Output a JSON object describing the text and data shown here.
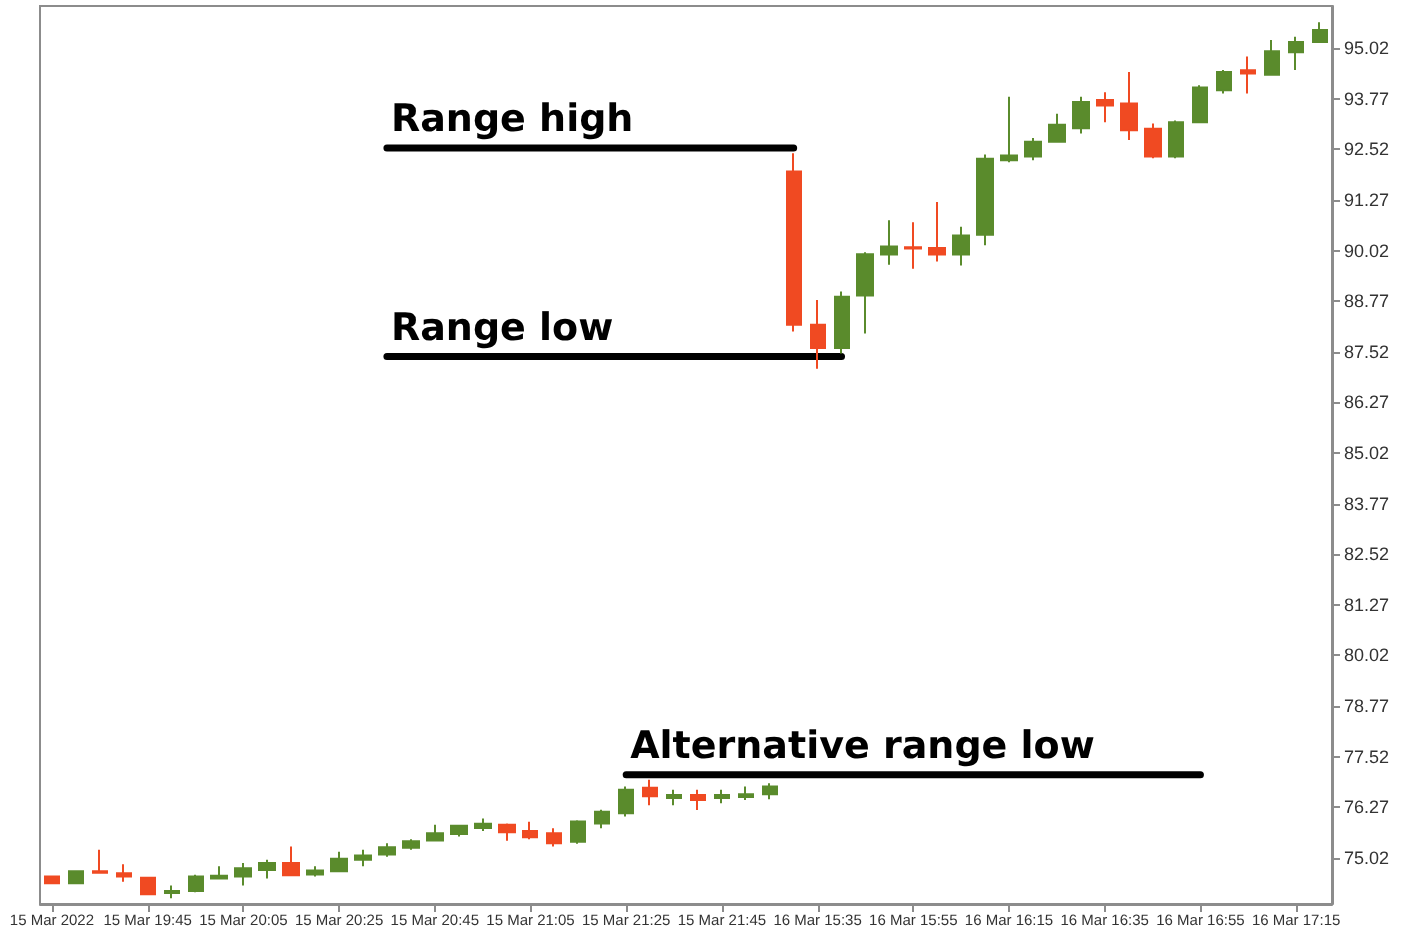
{
  "chart_data": {
    "type": "candlestick",
    "categories": [
      "15 Mar 2022",
      null,
      null,
      null,
      "15 Mar 19:45",
      null,
      null,
      null,
      "15 Mar 20:05",
      null,
      null,
      null,
      "15 Mar 20:25",
      null,
      null,
      null,
      "15 Mar 20:45",
      null,
      null,
      null,
      "15 Mar 21:05",
      null,
      null,
      null,
      "15 Mar 21:25",
      null,
      null,
      null,
      "15 Mar 21:45",
      null,
      null,
      null,
      "16 Mar 15:35",
      null,
      null,
      null,
      "16 Mar 15:55",
      null,
      null,
      null,
      "16 Mar 16:15",
      null,
      null,
      null,
      "16 Mar 16:35",
      null,
      null,
      null,
      "16 Mar 16:55",
      null,
      null,
      null,
      "16 Mar 17:15",
      null
    ],
    "ohlc": [
      [
        74.56,
        74.58,
        74.37,
        74.39
      ],
      [
        74.39,
        74.71,
        74.38,
        74.69
      ],
      [
        74.69,
        75.22,
        74.63,
        74.65
      ],
      [
        74.64,
        74.86,
        74.43,
        74.56
      ],
      [
        74.53,
        74.55,
        74.1,
        74.12
      ],
      [
        74.15,
        74.34,
        74.02,
        74.2
      ],
      [
        74.2,
        74.6,
        74.17,
        74.56
      ],
      [
        74.51,
        74.81,
        74.49,
        74.58
      ],
      [
        74.56,
        74.89,
        74.34,
        74.76
      ],
      [
        74.72,
        74.97,
        74.51,
        74.89
      ],
      [
        74.89,
        75.3,
        74.57,
        74.59
      ],
      [
        74.61,
        74.81,
        74.56,
        74.71
      ],
      [
        74.69,
        75.17,
        74.67,
        75.0
      ],
      [
        74.97,
        75.22,
        74.81,
        75.08
      ],
      [
        75.1,
        75.38,
        75.05,
        75.28
      ],
      [
        75.27,
        75.48,
        75.22,
        75.43
      ],
      [
        75.45,
        75.84,
        75.43,
        75.63
      ],
      [
        75.61,
        75.83,
        75.55,
        75.81
      ],
      [
        75.76,
        75.99,
        75.68,
        75.86
      ],
      [
        75.84,
        75.87,
        75.44,
        75.65
      ],
      [
        75.68,
        75.91,
        75.48,
        75.53
      ],
      [
        75.63,
        75.75,
        75.3,
        75.38
      ],
      [
        75.42,
        75.95,
        75.37,
        75.92
      ],
      [
        75.87,
        76.21,
        75.75,
        76.16
      ],
      [
        76.12,
        76.78,
        76.04,
        76.7
      ],
      [
        76.75,
        76.95,
        76.32,
        76.54
      ],
      [
        76.5,
        76.7,
        76.32,
        76.57
      ],
      [
        76.57,
        76.7,
        76.2,
        76.45
      ],
      [
        76.5,
        76.7,
        76.37,
        76.57
      ],
      [
        76.52,
        76.78,
        76.45,
        76.59
      ],
      [
        76.59,
        76.86,
        76.47,
        76.78
      ],
      [
        91.97,
        92.42,
        88.02,
        88.19
      ],
      [
        88.19,
        88.8,
        87.1,
        87.61
      ],
      [
        87.61,
        89.01,
        87.48,
        88.88
      ],
      [
        88.91,
        89.98,
        87.97,
        89.93
      ],
      [
        89.92,
        90.77,
        89.67,
        90.12
      ],
      [
        90.1,
        90.72,
        89.57,
        90.07
      ],
      [
        90.08,
        91.22,
        89.75,
        89.92
      ],
      [
        89.92,
        90.61,
        89.65,
        90.39
      ],
      [
        90.41,
        92.39,
        90.15,
        92.29
      ],
      [
        92.25,
        93.82,
        92.2,
        92.37
      ],
      [
        92.34,
        92.8,
        92.25,
        92.71
      ],
      [
        92.71,
        93.4,
        92.68,
        93.13
      ],
      [
        93.04,
        93.82,
        92.91,
        93.69
      ],
      [
        93.74,
        93.93,
        93.19,
        93.6
      ],
      [
        93.65,
        94.43,
        92.75,
        92.99
      ],
      [
        93.03,
        93.16,
        92.3,
        92.34
      ],
      [
        92.34,
        93.23,
        92.3,
        93.19
      ],
      [
        93.19,
        94.1,
        93.17,
        94.05
      ],
      [
        93.98,
        94.48,
        93.9,
        94.43
      ],
      [
        94.47,
        94.81,
        93.9,
        94.39
      ],
      [
        94.36,
        95.22,
        94.34,
        94.94
      ],
      [
        94.92,
        95.3,
        94.48,
        95.17
      ],
      [
        95.17,
        95.66,
        95.15,
        95.47
      ]
    ],
    "colors": [
      "#f04a22",
      "#5a8b2c",
      "#f04a22",
      "#f04a22",
      "#f04a22",
      "#5a8b2c",
      "#5a8b2c",
      "#5a8b2c",
      "#5a8b2c",
      "#5a8b2c",
      "#f04a22",
      "#5a8b2c",
      "#5a8b2c",
      "#5a8b2c",
      "#5a8b2c",
      "#5a8b2c",
      "#5a8b2c",
      "#5a8b2c",
      "#5a8b2c",
      "#f04a22",
      "#f04a22",
      "#f04a22",
      "#5a8b2c",
      "#5a8b2c",
      "#5a8b2c",
      "#f04a22",
      "#5a8b2c",
      "#f04a22",
      "#5a8b2c",
      "#5a8b2c",
      "#5a8b2c",
      "#f04a22",
      "#f04a22",
      "#5a8b2c",
      "#5a8b2c",
      "#5a8b2c",
      "#f04a22",
      "#f04a22",
      "#5a8b2c",
      "#5a8b2c",
      "#5a8b2c",
      "#5a8b2c",
      "#5a8b2c",
      "#5a8b2c",
      "#f04a22",
      "#f04a22",
      "#f04a22",
      "#5a8b2c",
      "#5a8b2c",
      "#5a8b2c",
      "#f04a22",
      "#5a8b2c",
      "#5a8b2c",
      "#5a8b2c"
    ],
    "series": [
      {
        "type": "line",
        "name": "Range high",
        "color": "#000000",
        "values": [
          null,
          null,
          null,
          null,
          null,
          null,
          null,
          null,
          null,
          null,
          null,
          null,
          null,
          null,
          92.55,
          92.55,
          92.55,
          92.55,
          92.55,
          92.55,
          92.55,
          92.55,
          92.55,
          92.55,
          92.55,
          92.55,
          92.55,
          92.55,
          92.55,
          92.55,
          92.55,
          92.55,
          null,
          null,
          null,
          null,
          null,
          null,
          null,
          null,
          null,
          null,
          null,
          null,
          null,
          null,
          null,
          null,
          null,
          null,
          null,
          null,
          null,
          null
        ]
      },
      {
        "type": "line",
        "name": "Range low",
        "color": "#000000",
        "values": [
          null,
          null,
          null,
          null,
          null,
          null,
          null,
          null,
          null,
          null,
          null,
          null,
          null,
          null,
          87.4,
          87.4,
          87.4,
          87.4,
          87.4,
          87.4,
          87.4,
          87.4,
          87.4,
          87.4,
          87.4,
          87.4,
          87.4,
          87.4,
          87.4,
          87.4,
          87.4,
          87.4,
          87.4,
          87.4,
          null,
          null,
          null,
          null,
          null,
          null,
          null,
          null,
          null,
          null,
          null,
          null,
          null,
          null,
          null,
          null,
          null,
          null,
          null,
          null
        ]
      },
      {
        "type": "line",
        "name": "Alternative range low",
        "color": "#000000",
        "values": [
          null,
          null,
          null,
          null,
          null,
          null,
          null,
          null,
          null,
          null,
          null,
          null,
          null,
          null,
          null,
          null,
          null,
          null,
          null,
          null,
          null,
          null,
          null,
          null,
          77.07,
          77.07,
          77.07,
          77.07,
          77.07,
          77.07,
          77.07,
          77.07,
          77.07,
          77.07,
          77.07,
          77.07,
          77.07,
          77.07,
          77.07,
          77.07,
          77.07,
          77.07,
          77.07,
          77.07,
          77.07,
          77.07,
          77.07,
          77.07,
          77.07,
          null,
          null,
          null,
          null,
          null
        ]
      }
    ],
    "ylim": [
      73.88,
      96.06
    ],
    "yticks": [
      75.02,
      76.27,
      77.52,
      78.77,
      80.02,
      81.27,
      82.52,
      83.77,
      85.02,
      86.27,
      87.52,
      88.77,
      90.02,
      91.27,
      92.52,
      93.77,
      95.02
    ]
  }
}
